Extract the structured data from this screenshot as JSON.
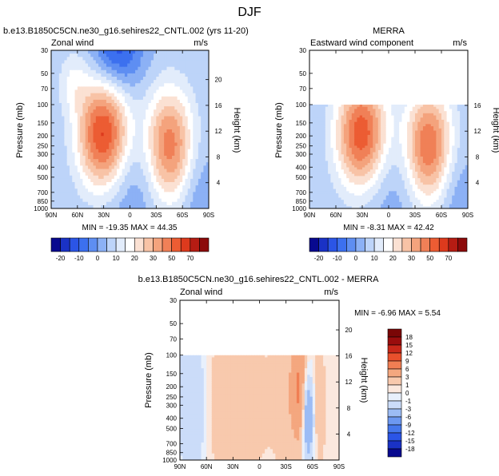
{
  "page_title": "DJF",
  "chart_data": [
    {
      "type": "heatmap",
      "title": "b.e13.B1850C5CN.ne30_g16.sehires22_CNTL.002 (yrs 11-20)",
      "subtitle_left": "Zonal wind",
      "subtitle_right": "m/s",
      "xlabel": "",
      "ylabel": "Pressure (mb)",
      "ylabel_right": "Height (km)",
      "xlim": [
        90,
        -90
      ],
      "x_ticks": [
        90,
        60,
        30,
        0,
        -30,
        -60,
        -90
      ],
      "x_tick_labels": [
        "90N",
        "60N",
        "30N",
        "0",
        "30S",
        "60S",
        "90S"
      ],
      "y_scale": "log",
      "ylim": [
        1000,
        30
      ],
      "y_ticks": [
        30,
        50,
        70,
        100,
        150,
        200,
        250,
        300,
        400,
        500,
        700,
        850,
        1000
      ],
      "y_tick_labels": [
        "30",
        "50",
        "70",
        "100",
        "150",
        "200",
        "250",
        "300",
        "400",
        "500",
        "700",
        "850",
        "1000"
      ],
      "y2_ticks_km": [
        4,
        8,
        12,
        16,
        20
      ],
      "y2_tick_labels": [
        "4",
        "8",
        "12",
        "16",
        "20"
      ],
      "stats": "MIN = -19.35   MAX = 44.35",
      "color_levels": [
        -25,
        -20,
        -15,
        -10,
        -5,
        0,
        5,
        10,
        15,
        20,
        25,
        30,
        35,
        40,
        50,
        60,
        70
      ],
      "colorbar_labels": [
        "-20",
        "-10",
        "0",
        "10",
        "20",
        "30",
        "50",
        "70"
      ],
      "features": [
        {
          "lat": 30,
          "p": 200,
          "value": 44,
          "width_deg": 30,
          "depth_dec": 0.55
        },
        {
          "lat": -45,
          "p": 250,
          "value": 34,
          "width_deg": 28,
          "depth_dec": 0.55
        },
        {
          "lat": 15,
          "p": 30,
          "value": -19,
          "width_deg": 28,
          "depth_dec": 0.4
        },
        {
          "lat": 5,
          "p": 500,
          "value": -9,
          "width_deg": 40,
          "depth_dec": 0.6
        },
        {
          "lat": 65,
          "p": 60,
          "value": 9,
          "width_deg": 18,
          "depth_dec": 0.3
        },
        {
          "lat": -75,
          "p": 700,
          "value": -6,
          "width_deg": 20,
          "depth_dec": 0.5
        }
      ]
    },
    {
      "type": "heatmap",
      "title": "MERRA",
      "subtitle_left": "Eastward wind component",
      "subtitle_right": "m/s",
      "ylabel": "Pressure (mb)",
      "ylabel_right": "Height (km)",
      "xlim": [
        90,
        -90
      ],
      "x_ticks": [
        90,
        60,
        30,
        0,
        -30,
        -60,
        -90
      ],
      "x_tick_labels": [
        "90N",
        "60N",
        "30N",
        "0",
        "30S",
        "60S",
        "90S"
      ],
      "y_scale": "log",
      "ylim": [
        1000,
        30
      ],
      "data_top_p": 100,
      "y_ticks": [
        30,
        50,
        70,
        100,
        150,
        200,
        250,
        300,
        400,
        500,
        700,
        850,
        1000
      ],
      "y_tick_labels": [
        "30",
        "50",
        "70",
        "100",
        "150",
        "200",
        "250",
        "300",
        "400",
        "500",
        "700",
        "850",
        "1000"
      ],
      "y2_ticks_km": [
        4,
        8,
        12,
        16
      ],
      "y2_tick_labels": [
        "4",
        "8",
        "12",
        "16"
      ],
      "stats": "MIN = -8.31   MAX = 42.42",
      "color_levels": [
        -25,
        -20,
        -15,
        -10,
        -5,
        0,
        5,
        10,
        15,
        20,
        25,
        30,
        35,
        40,
        50,
        60,
        70
      ],
      "colorbar_labels": [
        "-20",
        "-10",
        "0",
        "10",
        "20",
        "30",
        "50",
        "70"
      ],
      "features": [
        {
          "lat": 30,
          "p": 200,
          "value": 42,
          "width_deg": 30,
          "depth_dec": 0.55
        },
        {
          "lat": -45,
          "p": 250,
          "value": 36,
          "width_deg": 28,
          "depth_dec": 0.55
        },
        {
          "lat": 5,
          "p": 450,
          "value": -8,
          "width_deg": 40,
          "depth_dec": 0.6
        },
        {
          "lat": -75,
          "p": 700,
          "value": -6,
          "width_deg": 20,
          "depth_dec": 0.5
        }
      ]
    },
    {
      "type": "heatmap",
      "title": "b.e13.B1850C5CN.ne30_g16.sehires22_CNTL.002 - MERRA",
      "subtitle_left": "Zonal wind",
      "subtitle_right": "m/s",
      "ylabel": "Pressure (mb)",
      "ylabel_right": "Height (km)",
      "xlim": [
        90,
        -90
      ],
      "x_ticks": [
        90,
        60,
        30,
        0,
        -30,
        -60,
        -90
      ],
      "x_tick_labels": [
        "90N",
        "60N",
        "30N",
        "0",
        "30S",
        "60S",
        "90S"
      ],
      "y_scale": "log",
      "ylim": [
        1000,
        30
      ],
      "data_top_p": 100,
      "y_ticks": [
        30,
        50,
        70,
        100,
        150,
        200,
        250,
        300,
        400,
        500,
        700,
        850,
        1000
      ],
      "y_tick_labels": [
        "30",
        "50",
        "70",
        "100",
        "150",
        "200",
        "250",
        "300",
        "400",
        "500",
        "700",
        "850",
        "1000"
      ],
      "y2_ticks_km": [
        4,
        8,
        12,
        16,
        20
      ],
      "y2_tick_labels": [
        "4",
        "8",
        "12",
        "16",
        "20"
      ],
      "stats": "MIN = -6.96   MAX =  5.54",
      "color_levels": [
        -18,
        -15,
        -12,
        -9,
        -6,
        -3,
        -1,
        0,
        1,
        3,
        6,
        9,
        12,
        15,
        18
      ],
      "colorbar_labels": [
        "18",
        "15",
        "12",
        "9",
        "6",
        "3",
        "1",
        "0",
        "-1",
        "-3",
        "-6",
        "-9",
        "-12",
        "-15",
        "-18"
      ],
      "features": [
        {
          "lat": 75,
          "p": 300,
          "value": -3,
          "width_deg": 16,
          "depth_dec": 0.8
        },
        {
          "lat": 40,
          "p": 300,
          "value": 2.5,
          "width_deg": 22,
          "depth_dec": 0.8
        },
        {
          "lat": 5,
          "p": 300,
          "value": 1.5,
          "width_deg": 20,
          "depth_dec": 0.8
        },
        {
          "lat": -30,
          "p": 250,
          "value": 2.5,
          "width_deg": 16,
          "depth_dec": 0.7
        },
        {
          "lat": -45,
          "p": 200,
          "value": 5.5,
          "width_deg": 8,
          "depth_dec": 0.55
        },
        {
          "lat": -55,
          "p": 400,
          "value": -7,
          "width_deg": 6,
          "depth_dec": 0.4
        },
        {
          "lat": -68,
          "p": 300,
          "value": 2,
          "width_deg": 8,
          "depth_dec": 0.8
        }
      ]
    }
  ],
  "palettes": {
    "full": [
      "#08098f",
      "#1a32c5",
      "#2b55e6",
      "#3c70ef",
      "#5e8ef2",
      "#8cb1f5",
      "#bdd4f9",
      "#e2ecfb",
      "#ffffff",
      "#fbe1d3",
      "#f8c3a6",
      "#f4a37d",
      "#f08057",
      "#ec5c33",
      "#dd3a1d",
      "#b51c13",
      "#8c0a0a"
    ],
    "diff": [
      "#08098f",
      "#1a32c5",
      "#2b55e6",
      "#4577ec",
      "#6c98f1",
      "#9cbcf5",
      "#cbdcf9",
      "#e8f0fc",
      "#fbe8de",
      "#f8c9ad",
      "#f4a77f",
      "#f07e53",
      "#e9502c",
      "#c9281a",
      "#9a0d0d",
      "#7a0606"
    ]
  }
}
